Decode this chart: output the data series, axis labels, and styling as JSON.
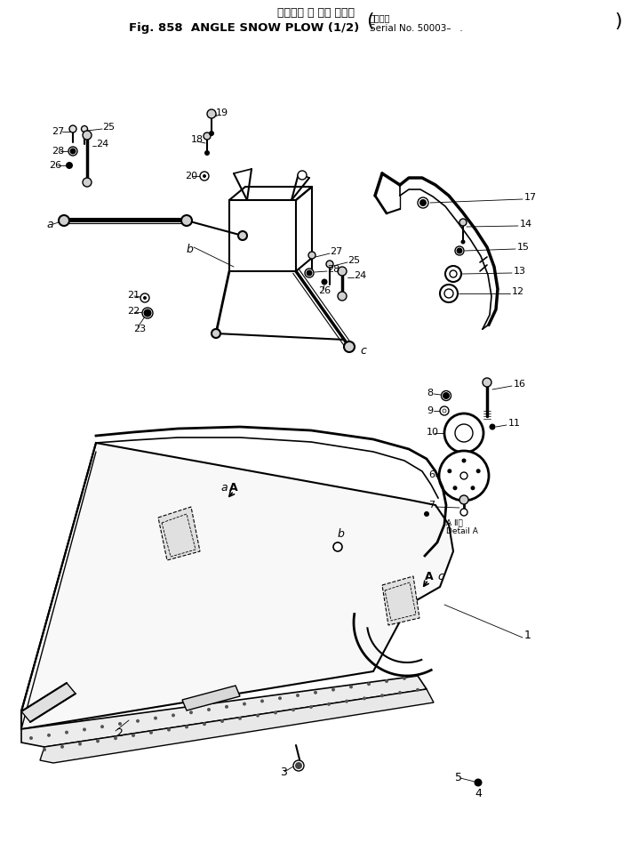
{
  "title_japanese": "アングル ス ノー プラウ",
  "title_main": "Fig. 858  ANGLE SNOW PLOW (1/2)",
  "title_serial_label": "適用号機",
  "title_serial": "Serial No. 50003–   .",
  "bg_color": "#ffffff",
  "lc": "#000000",
  "tc": "#000000",
  "fig_width": 7.1,
  "fig_height": 9.75,
  "dpi": 100
}
